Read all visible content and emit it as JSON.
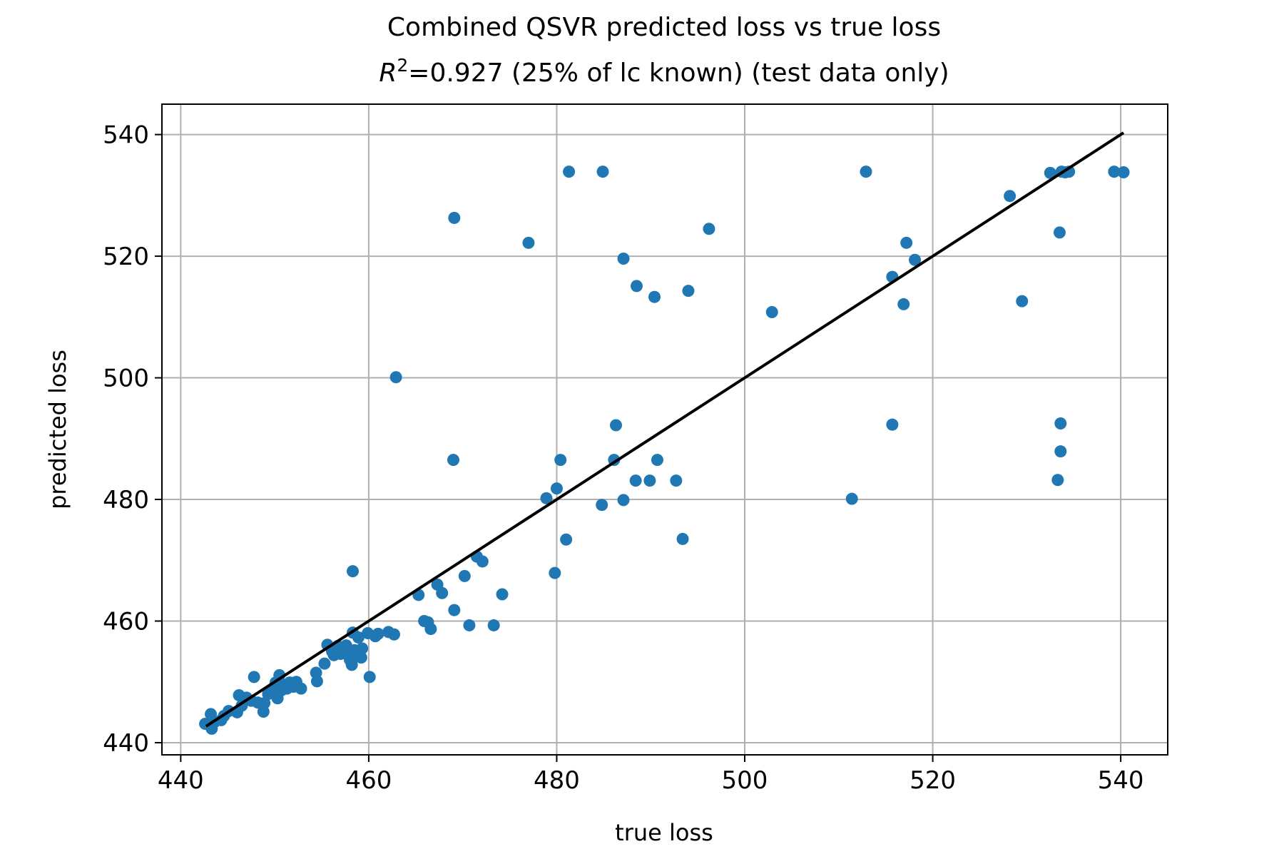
{
  "chart_data": {
    "type": "scatter",
    "title": "Combined QSVR predicted loss vs true loss",
    "subtitle": {
      "r_symbol": "R",
      "r_exponent": "2",
      "rest": "=0.927 (25% of lc known) (test data only)"
    },
    "xlabel": "true loss",
    "ylabel": "predicted loss",
    "xlim": [
      438,
      545
    ],
    "ylim": [
      438,
      545
    ],
    "xticks": [
      440,
      460,
      480,
      500,
      520,
      540
    ],
    "yticks": [
      440,
      460,
      480,
      500,
      520,
      540
    ],
    "grid": true,
    "point_color": "#1f77b4",
    "line_color": "#000000",
    "fit_line": {
      "x": [
        442.7,
        540.3
      ],
      "y": [
        442.7,
        540.3
      ]
    },
    "series": [
      {
        "points": [
          [
            442.6,
            443.1
          ],
          [
            443.2,
            444.7
          ],
          [
            443.3,
            442.3
          ],
          [
            443.6,
            443.4
          ],
          [
            444.3,
            443.7
          ],
          [
            444.6,
            444.4
          ],
          [
            445.1,
            445.2
          ],
          [
            446.0,
            445.0
          ],
          [
            446.2,
            447.8
          ],
          [
            446.5,
            446.1
          ],
          [
            447.0,
            447.4
          ],
          [
            447.5,
            446.9
          ],
          [
            447.8,
            450.8
          ],
          [
            448.2,
            446.6
          ],
          [
            448.8,
            445.1
          ],
          [
            448.9,
            446.5
          ],
          [
            449.3,
            448.0
          ],
          [
            449.6,
            448.7
          ],
          [
            450.0,
            449.3
          ],
          [
            450.1,
            449.9
          ],
          [
            450.3,
            447.3
          ],
          [
            450.5,
            451.1
          ],
          [
            450.7,
            448.6
          ],
          [
            451.0,
            449.5
          ],
          [
            451.3,
            448.9
          ],
          [
            451.6,
            449.9
          ],
          [
            452.0,
            449.2
          ],
          [
            452.3,
            450.0
          ],
          [
            452.8,
            448.9
          ],
          [
            454.4,
            451.5
          ],
          [
            454.5,
            450.1
          ],
          [
            455.3,
            453.0
          ],
          [
            455.6,
            456.1
          ],
          [
            456.1,
            455.0
          ],
          [
            456.3,
            454.4
          ],
          [
            456.5,
            455.2
          ],
          [
            456.7,
            455.9
          ],
          [
            457.0,
            454.6
          ],
          [
            457.3,
            455.5
          ],
          [
            457.6,
            456.0
          ],
          [
            457.8,
            454.4
          ],
          [
            458.0,
            453.6
          ],
          [
            458.2,
            452.8
          ],
          [
            458.3,
            458.1
          ],
          [
            458.3,
            468.2
          ],
          [
            458.5,
            455.2
          ],
          [
            458.7,
            454.2
          ],
          [
            458.9,
            457.3
          ],
          [
            459.2,
            454.0
          ],
          [
            459.3,
            455.5
          ],
          [
            459.9,
            458.0
          ],
          [
            460.1,
            450.8
          ],
          [
            460.7,
            457.5
          ],
          [
            461.0,
            457.9
          ],
          [
            462.1,
            458.2
          ],
          [
            462.7,
            457.8
          ],
          [
            462.9,
            500.1
          ],
          [
            465.3,
            464.3
          ],
          [
            465.9,
            460.0
          ],
          [
            466.3,
            459.8
          ],
          [
            466.6,
            458.7
          ],
          [
            467.3,
            466.0
          ],
          [
            467.8,
            464.6
          ],
          [
            469.1,
            461.8
          ],
          [
            469.0,
            486.5
          ],
          [
            469.1,
            526.3
          ],
          [
            470.2,
            467.4
          ],
          [
            470.7,
            459.3
          ],
          [
            471.5,
            470.6
          ],
          [
            472.1,
            469.8
          ],
          [
            473.3,
            459.3
          ],
          [
            474.2,
            464.4
          ],
          [
            477.0,
            522.2
          ],
          [
            478.9,
            480.2
          ],
          [
            479.8,
            467.9
          ],
          [
            480.0,
            481.8
          ],
          [
            480.4,
            486.5
          ],
          [
            481.0,
            473.4
          ],
          [
            481.3,
            533.9
          ],
          [
            484.8,
            479.1
          ],
          [
            484.9,
            533.9
          ],
          [
            486.1,
            486.5
          ],
          [
            486.3,
            492.2
          ],
          [
            487.1,
            479.9
          ],
          [
            487.1,
            519.6
          ],
          [
            488.4,
            483.1
          ],
          [
            488.5,
            515.1
          ],
          [
            489.9,
            483.1
          ],
          [
            490.4,
            513.3
          ],
          [
            490.7,
            486.5
          ],
          [
            492.7,
            483.1
          ],
          [
            493.4,
            473.5
          ],
          [
            494.0,
            514.3
          ],
          [
            496.2,
            524.5
          ],
          [
            502.9,
            510.8
          ],
          [
            511.4,
            480.1
          ],
          [
            512.9,
            533.9
          ],
          [
            515.7,
            516.6
          ],
          [
            515.7,
            492.3
          ],
          [
            516.9,
            512.1
          ],
          [
            517.2,
            522.2
          ],
          [
            518.1,
            519.4
          ],
          [
            528.2,
            529.9
          ],
          [
            529.5,
            512.6
          ],
          [
            532.5,
            533.7
          ],
          [
            533.3,
            483.2
          ],
          [
            533.5,
            523.9
          ],
          [
            533.6,
            492.5
          ],
          [
            533.6,
            487.9
          ],
          [
            533.7,
            533.9
          ],
          [
            534.1,
            533.8
          ],
          [
            534.5,
            533.9
          ],
          [
            539.3,
            533.9
          ],
          [
            540.3,
            533.8
          ]
        ]
      }
    ]
  }
}
